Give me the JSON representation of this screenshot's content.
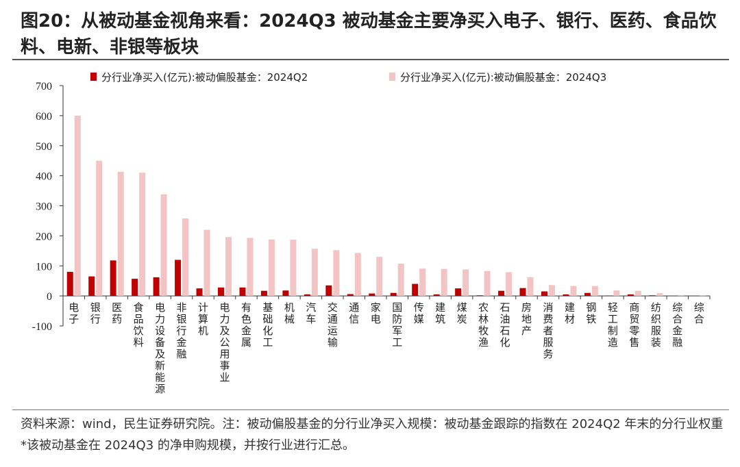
{
  "title": "图20：从被动基金视角来看：2024Q3 被动基金主要净买入电子、银行、医药、食品饮料、电新、非银等板块",
  "note": "资料来源：wind，民生证券研究院。注：被动偏股基金的分行业净买入规模：被动基金跟踪的指数在 2024Q2 年末的分行业权重*该被动基金在 2024Q3 的净申购规模，并按行业进行汇总。",
  "colors": {
    "q2": "#c00000",
    "q3": "#f2c4c4",
    "axis": "#333333"
  },
  "chart_data": {
    "type": "bar",
    "title": "",
    "xlabel": "",
    "ylabel": "",
    "ylim": [
      -100,
      700
    ],
    "yticks": [
      "-100",
      "0",
      "100",
      "200",
      "300",
      "400",
      "500",
      "600",
      "700"
    ],
    "legend_position": "top",
    "categories": [
      "电子",
      "银行",
      "医药",
      "食品饮料",
      "电力设备及新能源",
      "非银行金融",
      "计算机",
      "电力及公用事业",
      "有色金属",
      "基础化工",
      "机械",
      "汽车",
      "交通运输",
      "通信",
      "家电",
      "国防军工",
      "传媒",
      "建筑",
      "煤炭",
      "农林牧渔",
      "石油石化",
      "房地产",
      "消费者服务",
      "建材",
      "钢铁",
      "轻工制造",
      "商贸零售",
      "纺织服装",
      "综合金融",
      "综合"
    ],
    "series": [
      {
        "name": "分行业净买入(亿元):被动偏股基金：2024Q2",
        "values": [
          80,
          65,
          118,
          57,
          62,
          120,
          25,
          28,
          28,
          17,
          18,
          5,
          35,
          6,
          8,
          10,
          40,
          5,
          25,
          2,
          17,
          26,
          15,
          5,
          10,
          1,
          5,
          2,
          0,
          0
        ]
      },
      {
        "name": "分行业净买入(亿元):被动偏股基金：2024Q3",
        "values": [
          600,
          450,
          413,
          410,
          338,
          258,
          220,
          196,
          193,
          188,
          187,
          157,
          152,
          143,
          130,
          107,
          91,
          90,
          88,
          83,
          79,
          62,
          36,
          33,
          33,
          18,
          17,
          9,
          3,
          1
        ]
      }
    ]
  }
}
